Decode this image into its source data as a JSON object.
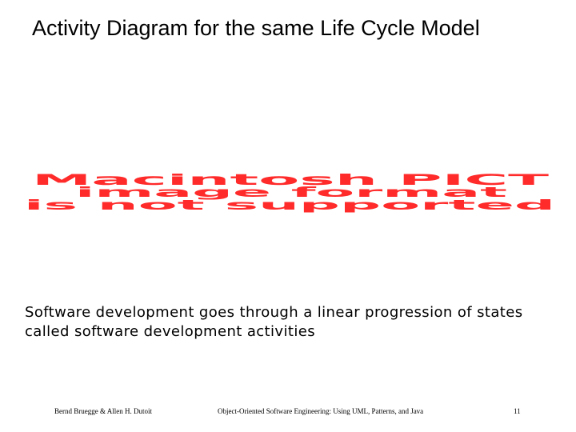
{
  "slide": {
    "title": "Activity Diagram for the same Life Cycle Model",
    "placeholder_image": {
      "lines": [
        "Macintosh PICT",
        "image format",
        "is not supported"
      ],
      "color": "#ff2a2a"
    },
    "body": "Software development goes through a linear progression of states called software development activities",
    "footer": {
      "authors": "Bernd Bruegge & Allen H. Dutoit",
      "book": "Object-Oriented Software Engineering: Using UML, Patterns, and Java",
      "page": "11"
    }
  }
}
